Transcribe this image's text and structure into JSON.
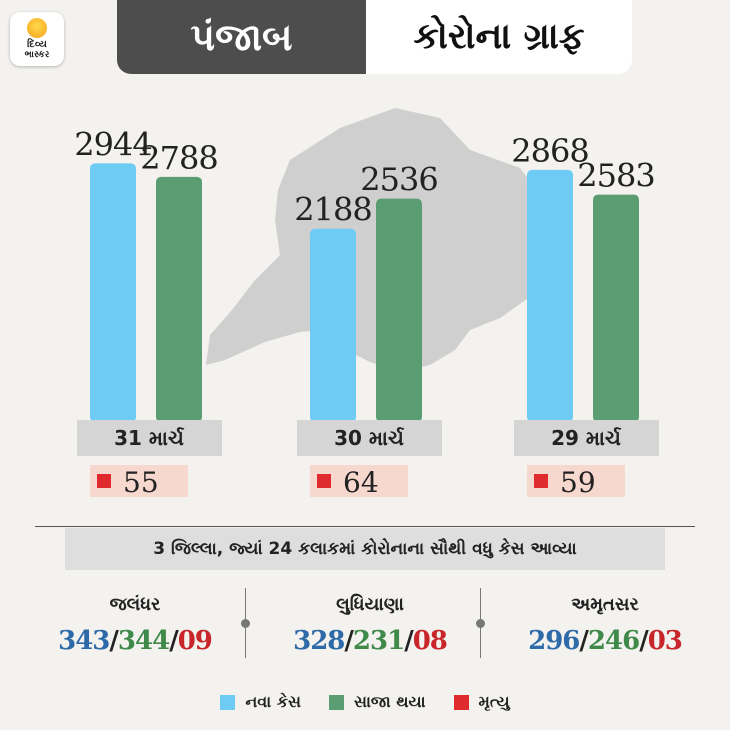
{
  "logo": {
    "line1": "દિવ્ય",
    "line2": "ભાસ્કર"
  },
  "banner": {
    "state": "પંજાબ",
    "title": "કોરોના ગ્રાફ"
  },
  "colors": {
    "new_cases": "#6dcbf4",
    "recovered": "#5a9d72",
    "deaths": "#e02b2e",
    "death_box": "#f7d8ce",
    "label_box": "#d5d5d5"
  },
  "chart_data": {
    "type": "bar",
    "categories": [
      "31 માર્ચ",
      "30 માર્ચ",
      "29 માર્ચ"
    ],
    "series": [
      {
        "name": "નવા કેસ",
        "values": [
          2944,
          2188,
          2868
        ]
      },
      {
        "name": "સાજા થયા",
        "values": [
          2788,
          2536,
          2583
        ]
      }
    ],
    "deaths": {
      "name": "મૃત્યુ",
      "values": [
        "55",
        "64",
        "59"
      ]
    },
    "legend_position": "bottom"
  },
  "subheading": "3 જિલ્લા, જ્યાં 24 કલાકમાં કોરોનાના સૌથી વધુ કેસ આવ્યા",
  "districts": [
    {
      "name": "જલંધર",
      "new": "343",
      "recovered": "344",
      "deaths": "09"
    },
    {
      "name": "લુધિયાણા",
      "new": "328",
      "recovered": "231",
      "deaths": "08"
    },
    {
      "name": "અમૃતસર",
      "new": "296",
      "recovered": "246",
      "deaths": "03"
    }
  ],
  "num_separator": "/",
  "legend": [
    "નવા કેસ",
    "સાજા થયા",
    "મૃત્યુ"
  ]
}
